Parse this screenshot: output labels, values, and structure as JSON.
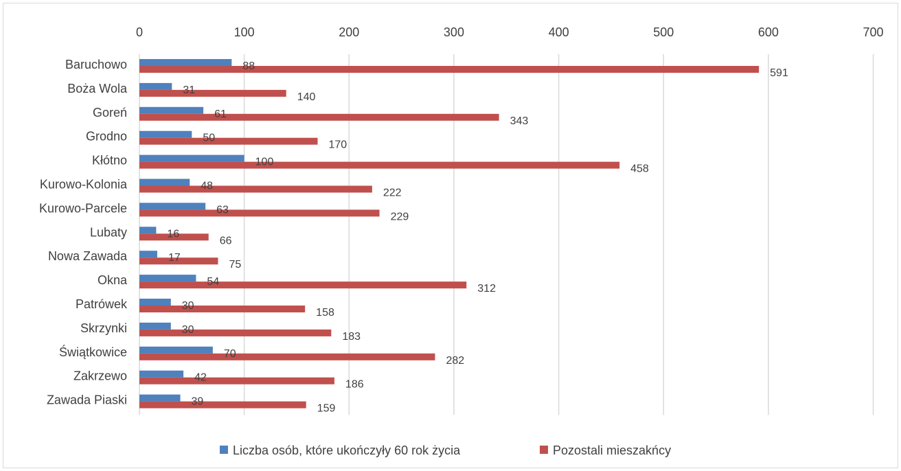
{
  "chart_data": {
    "type": "bar",
    "orientation": "horizontal",
    "title": "",
    "xlabel": "",
    "ylabel": "",
    "xlim": [
      0,
      700
    ],
    "x_ticks": [
      "0",
      "100",
      "200",
      "300",
      "400",
      "500",
      "600",
      "700"
    ],
    "grid": true,
    "legend_position": "bottom",
    "categories": [
      "Baruchowo",
      "Boża Wola",
      "Goreń",
      "Grodno",
      "Kłótno",
      "Kurowo-Kolonia",
      "Kurowo-Parcele",
      "Lubaty",
      "Nowa Zawada",
      "Okna",
      "Patrówek",
      "Skrzynki",
      "Świątkowice",
      "Zakrzewo",
      "Zawada Piaski"
    ],
    "series": [
      {
        "name": "Liczba osób, które ukończyły 60 rok życia",
        "color": "#4f81bd",
        "values": [
          88,
          31,
          61,
          50,
          100,
          48,
          63,
          16,
          17,
          54,
          30,
          30,
          70,
          42,
          39
        ]
      },
      {
        "name": "Pozostali mieszakńcy",
        "color": "#c0504d",
        "values": [
          591,
          140,
          343,
          170,
          458,
          222,
          229,
          66,
          75,
          312,
          158,
          183,
          282,
          186,
          159
        ]
      }
    ]
  }
}
